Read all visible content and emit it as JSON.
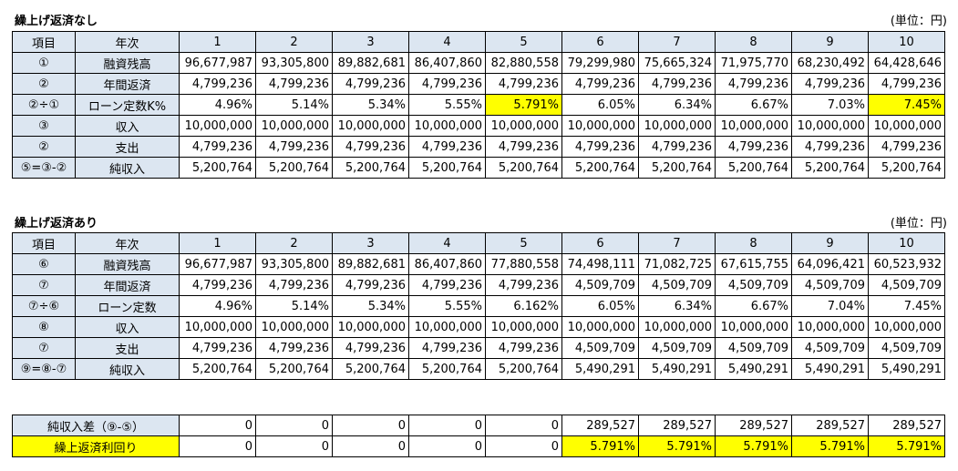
{
  "section1": {
    "title": "繰上げ返済なし",
    "unit": "(単位：円)",
    "header": {
      "col1": "項目",
      "col2": "年次",
      "years": [
        "1",
        "2",
        "3",
        "4",
        "5",
        "6",
        "7",
        "8",
        "9",
        "10"
      ]
    },
    "rows": [
      {
        "id": "①",
        "label": "融資残高",
        "values": [
          "96,677,987",
          "93,305,800",
          "89,882,681",
          "86,407,860",
          "82,880,558",
          "79,299,980",
          "75,665,324",
          "71,975,770",
          "68,230,492",
          "64,428,646"
        ]
      },
      {
        "id": "②",
        "label": "年間返済",
        "values": [
          "4,799,236",
          "4,799,236",
          "4,799,236",
          "4,799,236",
          "4,799,236",
          "4,799,236",
          "4,799,236",
          "4,799,236",
          "4,799,236",
          "4,799,236"
        ]
      },
      {
        "id": "②÷①",
        "label": "ローン定数K%",
        "values": [
          "4.96%",
          "5.14%",
          "5.34%",
          "5.55%",
          "5.791%",
          "6.05%",
          "6.34%",
          "6.67%",
          "7.03%",
          "7.45%"
        ]
      },
      {
        "id": "③",
        "label": "収入",
        "values": [
          "10,000,000",
          "10,000,000",
          "10,000,000",
          "10,000,000",
          "10,000,000",
          "10,000,000",
          "10,000,000",
          "10,000,000",
          "10,000,000",
          "10,000,000"
        ]
      },
      {
        "id": "②",
        "label": "支出",
        "values": [
          "4,799,236",
          "4,799,236",
          "4,799,236",
          "4,799,236",
          "4,799,236",
          "4,799,236",
          "4,799,236",
          "4,799,236",
          "4,799,236",
          "4,799,236"
        ]
      },
      {
        "id": "⑤=③-②",
        "label": "純収入",
        "values": [
          "5,200,764",
          "5,200,764",
          "5,200,764",
          "5,200,764",
          "5,200,764",
          "5,200,764",
          "5,200,764",
          "5,200,764",
          "5,200,764",
          "5,200,764"
        ]
      }
    ]
  },
  "section2": {
    "title": "繰上げ返済あり",
    "unit": "(単位：円)",
    "header": {
      "col1": "項目",
      "col2": "年次",
      "years": [
        "1",
        "2",
        "3",
        "4",
        "5",
        "6",
        "7",
        "8",
        "9",
        "10"
      ]
    },
    "rows": [
      {
        "id": "⑥",
        "label": "融資残高",
        "values": [
          "96,677,987",
          "93,305,800",
          "89,882,681",
          "86,407,860",
          "77,880,558",
          "74,498,111",
          "71,082,725",
          "67,615,755",
          "64,096,421",
          "60,523,932"
        ]
      },
      {
        "id": "⑦",
        "label": "年間返済",
        "values": [
          "4,799,236",
          "4,799,236",
          "4,799,236",
          "4,799,236",
          "4,799,236",
          "4,509,709",
          "4,509,709",
          "4,509,709",
          "4,509,709",
          "4,509,709"
        ]
      },
      {
        "id": "⑦÷⑥",
        "label": "ローン定数",
        "values": [
          "4.96%",
          "5.14%",
          "5.34%",
          "5.55%",
          "6.162%",
          "6.05%",
          "6.34%",
          "6.67%",
          "7.04%",
          "7.45%"
        ]
      },
      {
        "id": "⑧",
        "label": "収入",
        "values": [
          "10,000,000",
          "10,000,000",
          "10,000,000",
          "10,000,000",
          "10,000,000",
          "10,000,000",
          "10,000,000",
          "10,000,000",
          "10,000,000",
          "10,000,000"
        ]
      },
      {
        "id": "⑦",
        "label": "支出",
        "values": [
          "4,799,236",
          "4,799,236",
          "4,799,236",
          "4,799,236",
          "4,799,236",
          "4,509,709",
          "4,509,709",
          "4,509,709",
          "4,509,709",
          "4,509,709"
        ]
      },
      {
        "id": "⑨=⑧-⑦",
        "label": "純収入",
        "values": [
          "5,200,764",
          "5,200,764",
          "5,200,764",
          "5,200,764",
          "5,200,764",
          "5,490,291",
          "5,490,291",
          "5,490,291",
          "5,490,291",
          "5,490,291"
        ]
      }
    ]
  },
  "section3": {
    "rows": [
      {
        "label": "純収入差（⑨-⑤）",
        "values": [
          "0",
          "0",
          "0",
          "0",
          "0",
          "289,527",
          "289,527",
          "289,527",
          "289,527",
          "289,527"
        ]
      },
      {
        "label": "繰上返済利回り",
        "values": [
          "0",
          "0",
          "0",
          "0",
          "0",
          "5.791%",
          "5.791%",
          "5.791%",
          "5.791%",
          "5.791%"
        ]
      }
    ]
  },
  "highlight_color": "#ffff00",
  "header_color": "#dce6f1"
}
